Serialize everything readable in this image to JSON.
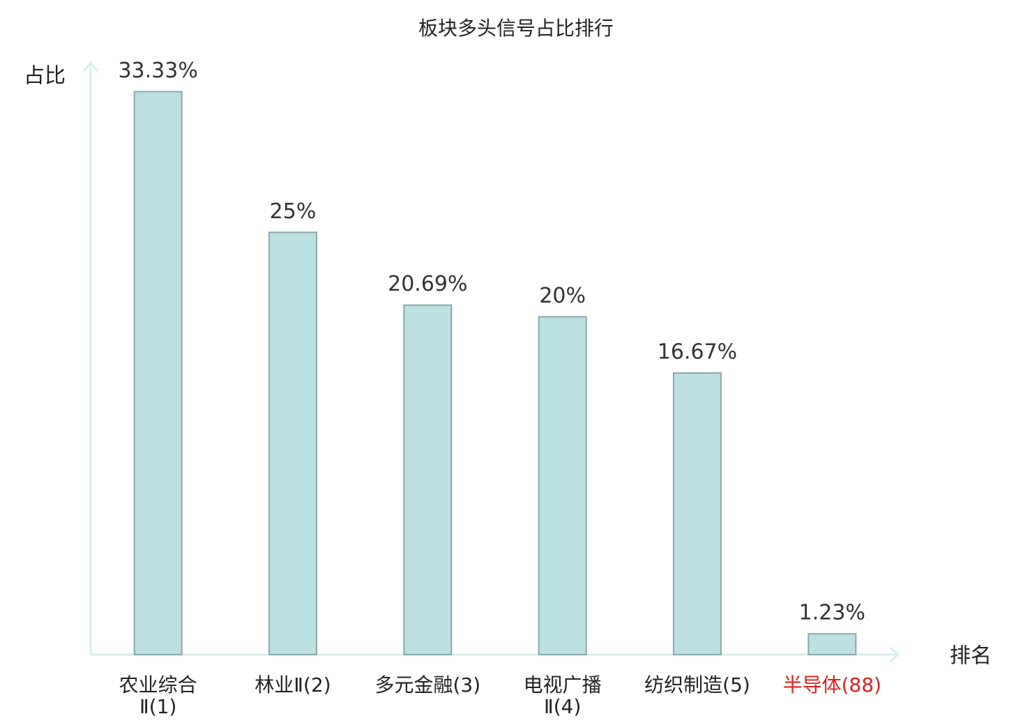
{
  "chart_data": {
    "type": "bar",
    "title": "板块多头信号占比排行",
    "y_label": "占比",
    "x_label": "排名",
    "categories": [
      "农业综合Ⅱ(1)",
      "林业Ⅱ(2)",
      "多元金融(3)",
      "电视广播Ⅱ(4)",
      "纺织制造(5)",
      "半导体(88)"
    ],
    "values": [
      33.33,
      25,
      20.69,
      20,
      16.67,
      1.23
    ],
    "value_labels": [
      "33.33%",
      "25%",
      "20.69%",
      "20%",
      "16.67%",
      "1.23%"
    ],
    "color": "#bde0e2",
    "edge_color": "#8aa8a8",
    "label_colors": [
      "#222222",
      "#222222",
      "#222222",
      "#222222",
      "#222222",
      "#e02020"
    ],
    "ylim": [
      0,
      35
    ]
  }
}
